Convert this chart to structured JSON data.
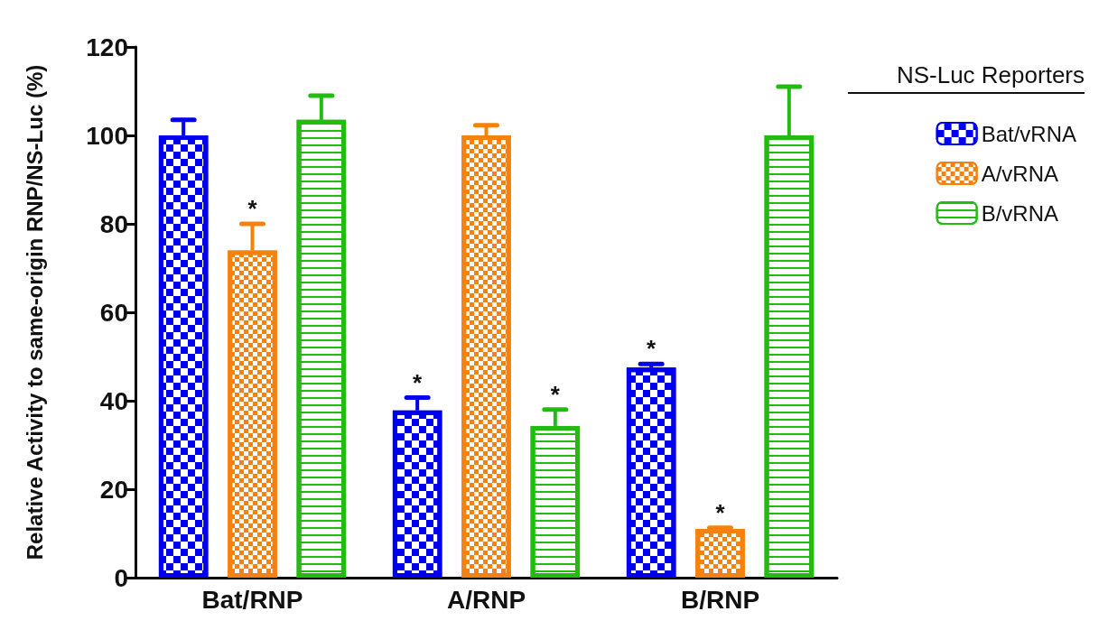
{
  "chart_data": {
    "type": "bar",
    "ylabel": "Relative Activity to same-origin RNP/NS-Luc (%)",
    "legend_title": "NS-Luc Reporters",
    "categories": [
      "Bat/RNP",
      "A/RNP",
      "B/RNP"
    ],
    "series": [
      {
        "name": "Bat/vRNA",
        "color": "#0000ee",
        "values": [
          100,
          37.8,
          47.5
        ],
        "errors": [
          [
            100,
            103.5
          ],
          [
            37.8,
            40.7
          ],
          [
            47.5,
            48.3
          ]
        ],
        "value_labels": [
          null,
          "*",
          "*"
        ]
      },
      {
        "name": "A/vRNA",
        "color": "#f5820f",
        "values": [
          74,
          100,
          11
        ],
        "errors": [
          [
            74,
            80
          ],
          [
            100,
            102.3
          ],
          [
            11,
            11.3
          ]
        ],
        "value_labels": [
          "*",
          null,
          "*"
        ]
      },
      {
        "name": "B/vRNA",
        "color": "#22bb11",
        "values": [
          103.5,
          34.3,
          100
        ],
        "errors": [
          [
            103.5,
            109
          ],
          [
            34.3,
            38
          ],
          [
            100,
            111
          ]
        ],
        "value_labels": [
          null,
          "*",
          null
        ]
      }
    ],
    "ylim": [
      0,
      120
    ],
    "yticks": [
      0,
      20,
      40,
      60,
      80,
      100,
      120
    ],
    "grid": false,
    "legend": "right"
  }
}
